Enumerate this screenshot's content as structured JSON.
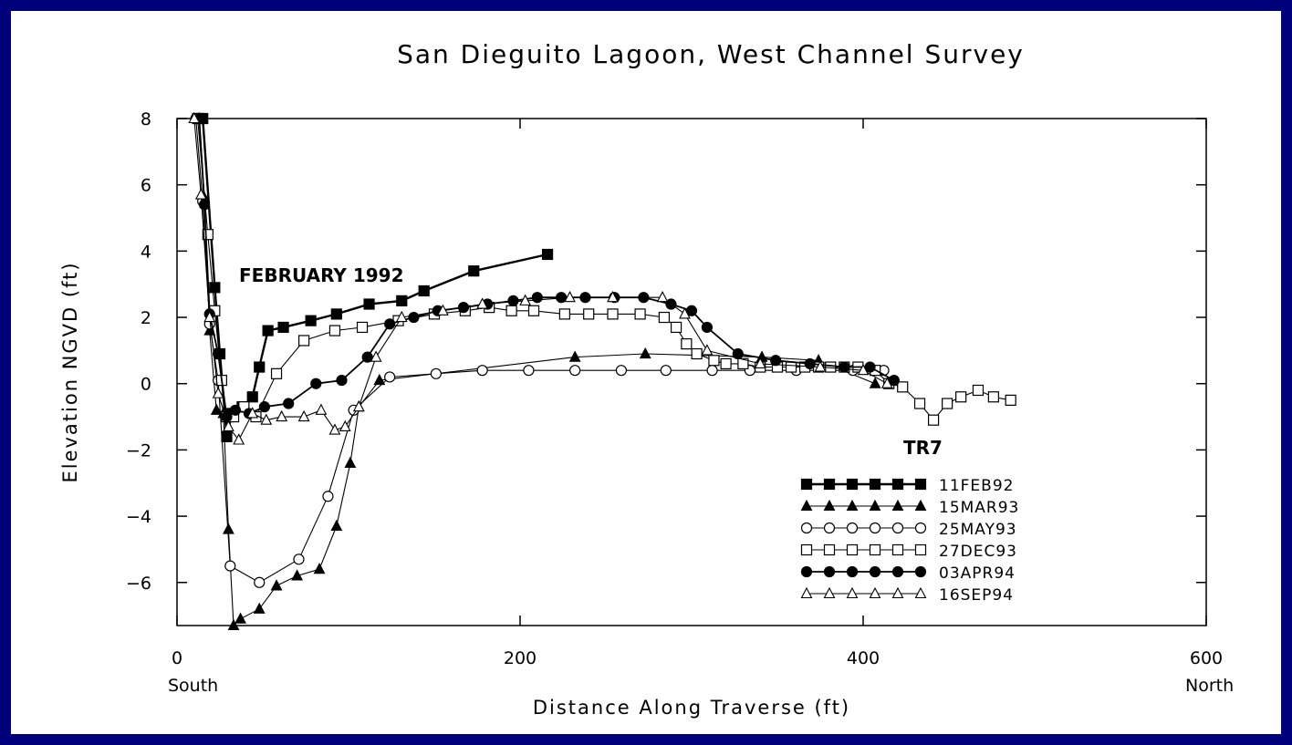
{
  "chart_data": {
    "type": "line",
    "title": "San Dieguito Lagoon, West Channel Survey",
    "xlabel": "Distance Along Traverse (ft)",
    "ylabel": "Elevation NGVD (ft)",
    "xlim": [
      0,
      600
    ],
    "ylim": [
      -7.3,
      8
    ],
    "x_ticks": [
      0,
      200,
      400,
      600
    ],
    "y_ticks": [
      -6,
      -4,
      -2,
      0,
      2,
      4,
      6,
      8
    ],
    "x_tick_labels": [
      "0",
      "200",
      "400",
      "600"
    ],
    "y_tick_labels": [
      "−6",
      "−4",
      "−2",
      "0",
      "2",
      "4",
      "6",
      "8"
    ],
    "x_start_label": "South",
    "x_end_label": "North",
    "grid": false,
    "legend_position": "bottom-right",
    "annotations": [
      {
        "text": "FEBRUARY 1992",
        "x": 38,
        "y": 3.3
      },
      {
        "text": "TR7",
        "x": 424,
        "y": -1.9
      }
    ],
    "series": [
      {
        "name": "11FEB92",
        "marker": "square-filled",
        "x": [
          13,
          15,
          22,
          25,
          29,
          32,
          38,
          44,
          48,
          53,
          62,
          78,
          93,
          112,
          131,
          144,
          173,
          216
        ],
        "y": [
          8.0,
          8.0,
          2.9,
          0.9,
          -1.6,
          -0.9,
          -0.7,
          -0.4,
          0.5,
          1.6,
          1.7,
          1.9,
          2.1,
          2.4,
          2.5,
          2.8,
          3.4,
          3.9
        ]
      },
      {
        "name": "15MAR93",
        "marker": "triangle-filled",
        "x": [
          13,
          16,
          19,
          23,
          27,
          30,
          33,
          37,
          48,
          58,
          70,
          83,
          93,
          101,
          106,
          118,
          232,
          273,
          341,
          374,
          407
        ],
        "y": [
          8.0,
          5.6,
          1.6,
          -0.8,
          -0.9,
          -4.4,
          -7.3,
          -7.1,
          -6.8,
          -6.1,
          -5.8,
          -5.6,
          -4.3,
          -2.4,
          -0.7,
          0.1,
          0.8,
          0.9,
          0.8,
          0.7,
          0.0
        ]
      },
      {
        "name": "25MAY93",
        "marker": "circle-open",
        "x": [
          11,
          15,
          19,
          24,
          31,
          48,
          71,
          88,
          103,
          124,
          151,
          178,
          205,
          232,
          259,
          285,
          312,
          334,
          361,
          394,
          412
        ],
        "y": [
          8.0,
          5.5,
          1.8,
          0.1,
          -5.5,
          -6.0,
          -5.3,
          -3.4,
          -0.8,
          0.2,
          0.3,
          0.4,
          0.4,
          0.4,
          0.4,
          0.4,
          0.4,
          0.4,
          0.4,
          0.4,
          0.4
        ]
      },
      {
        "name": "27DEC93",
        "marker": "square-open",
        "x": [
          12,
          18,
          22,
          26,
          29,
          33,
          39,
          46,
          58,
          74,
          92,
          108,
          129,
          150,
          168,
          182,
          195,
          208,
          226,
          240,
          254,
          270,
          284,
          291,
          297,
          303,
          313,
          320,
          330,
          340,
          350,
          358,
          366,
          374,
          381,
          389,
          397,
          407,
          415,
          423,
          433,
          441,
          449,
          457,
          467,
          476,
          486
        ],
        "y": [
          8.0,
          4.5,
          2.2,
          0.1,
          -1.0,
          -1.0,
          -0.7,
          -1.0,
          0.3,
          1.3,
          1.6,
          1.7,
          1.9,
          2.1,
          2.2,
          2.3,
          2.2,
          2.2,
          2.1,
          2.1,
          2.1,
          2.1,
          2.0,
          1.7,
          1.2,
          0.9,
          0.7,
          0.6,
          0.6,
          0.5,
          0.5,
          0.5,
          0.5,
          0.5,
          0.5,
          0.5,
          0.5,
          0.4,
          0.0,
          -0.1,
          -0.6,
          -1.1,
          -0.6,
          -0.4,
          -0.2,
          -0.4,
          -0.5
        ]
      },
      {
        "name": "03APR94",
        "marker": "circle-filled",
        "x": [
          13,
          16,
          19,
          24,
          29,
          34,
          42,
          51,
          65,
          81,
          96,
          111,
          124,
          138,
          152,
          167,
          181,
          196,
          210,
          224,
          238,
          255,
          272,
          288,
          300,
          309,
          327,
          349,
          369,
          389,
          404,
          418
        ],
        "y": [
          8.0,
          5.4,
          2.1,
          0.9,
          -1.0,
          -0.8,
          -0.9,
          -0.7,
          -0.6,
          0.0,
          0.1,
          0.8,
          1.8,
          2.0,
          2.2,
          2.3,
          2.4,
          2.5,
          2.6,
          2.6,
          2.6,
          2.6,
          2.6,
          2.4,
          2.2,
          1.7,
          0.9,
          0.7,
          0.6,
          0.5,
          0.5,
          0.1
        ]
      },
      {
        "name": "16SEP94",
        "marker": "triangle-open",
        "x": [
          10,
          14,
          19,
          24,
          30,
          36,
          44,
          52,
          61,
          74,
          84,
          92,
          98,
          106,
          116,
          131,
          155,
          178,
          203,
          229,
          254,
          283,
          296,
          309,
          340,
          375,
          400,
          414
        ],
        "y": [
          8.0,
          5.7,
          2.0,
          -0.3,
          -1.3,
          -1.7,
          -0.9,
          -1.1,
          -1.0,
          -1.0,
          -0.8,
          -1.4,
          -1.3,
          -0.7,
          0.8,
          2.0,
          2.2,
          2.4,
          2.5,
          2.6,
          2.6,
          2.6,
          2.1,
          1.0,
          0.6,
          0.5,
          0.4,
          0.0
        ]
      }
    ]
  }
}
